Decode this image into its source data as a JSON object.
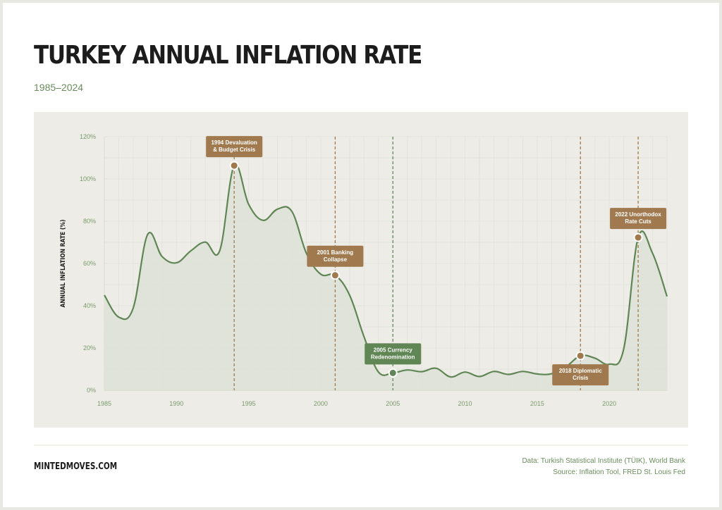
{
  "title": "TURKEY ANNUAL INFLATION RATE",
  "subtitle": "1985–2024",
  "footer": {
    "brand": "MINTEDMOVES.COM",
    "data_source": "Data: Turkish Statistical Institute (TÜIK), World Bank",
    "source": "Source: Inflation Tool, FRED St. Louis Fed"
  },
  "colors": {
    "line": "#5f8654",
    "fill": "#dde2d6",
    "annotation_brown": "#a07a4e",
    "annotation_green": "#5f8654",
    "background": "#edece7"
  },
  "chart_data": {
    "type": "area",
    "ylabel": "ANNUAL INFLATION RATE (%)",
    "xlabel": "",
    "ylim": [
      0,
      120
    ],
    "xlim": [
      1985,
      2024
    ],
    "yticks": [
      "0%",
      "20%",
      "40%",
      "60%",
      "80%",
      "100%",
      "120%"
    ],
    "xticks": [
      "1985",
      "1990",
      "1995",
      "2000",
      "2005",
      "2010",
      "2015",
      "2020"
    ],
    "grid": true,
    "x": [
      1985,
      1986,
      1987,
      1988,
      1989,
      1990,
      1991,
      1992,
      1993,
      1994,
      1995,
      1996,
      1997,
      1998,
      1999,
      2000,
      2001,
      2002,
      2003,
      2004,
      2005,
      2006,
      2007,
      2008,
      2009,
      2010,
      2011,
      2012,
      2013,
      2014,
      2015,
      2016,
      2017,
      2018,
      2019,
      2020,
      2021,
      2022,
      2023,
      2024
    ],
    "values": [
      45,
      34.6,
      38.9,
      73.7,
      63.3,
      60.3,
      66,
      70.1,
      66.1,
      106.3,
      88,
      80.4,
      85.7,
      84.6,
      64.9,
      54.9,
      54.4,
      45,
      25.3,
      8.6,
      8.2,
      9.6,
      8.8,
      10.4,
      6.3,
      8.6,
      6.5,
      8.9,
      7.5,
      8.9,
      7.7,
      7.8,
      11.1,
      16.3,
      15.2,
      12.3,
      19.6,
      72.3,
      64.8,
      44.4
    ],
    "annotations": [
      {
        "year": 1994,
        "lines": [
          "1994 Devaluation",
          "& Budget Crisis"
        ],
        "color": "brown",
        "position": "above"
      },
      {
        "year": 2001,
        "lines": [
          "2001 Banking",
          "Collapse"
        ],
        "color": "brown",
        "position": "above"
      },
      {
        "year": 2005,
        "lines": [
          "2005 Currency",
          "Redenomination"
        ],
        "color": "green",
        "position": "above"
      },
      {
        "year": 2018,
        "lines": [
          "2018 Diplomatic",
          "Crisis"
        ],
        "color": "brown",
        "position": "below"
      },
      {
        "year": 2022,
        "lines": [
          "2022 Unorthodox",
          "Rate Cuts"
        ],
        "color": "brown",
        "position": "above"
      }
    ]
  }
}
